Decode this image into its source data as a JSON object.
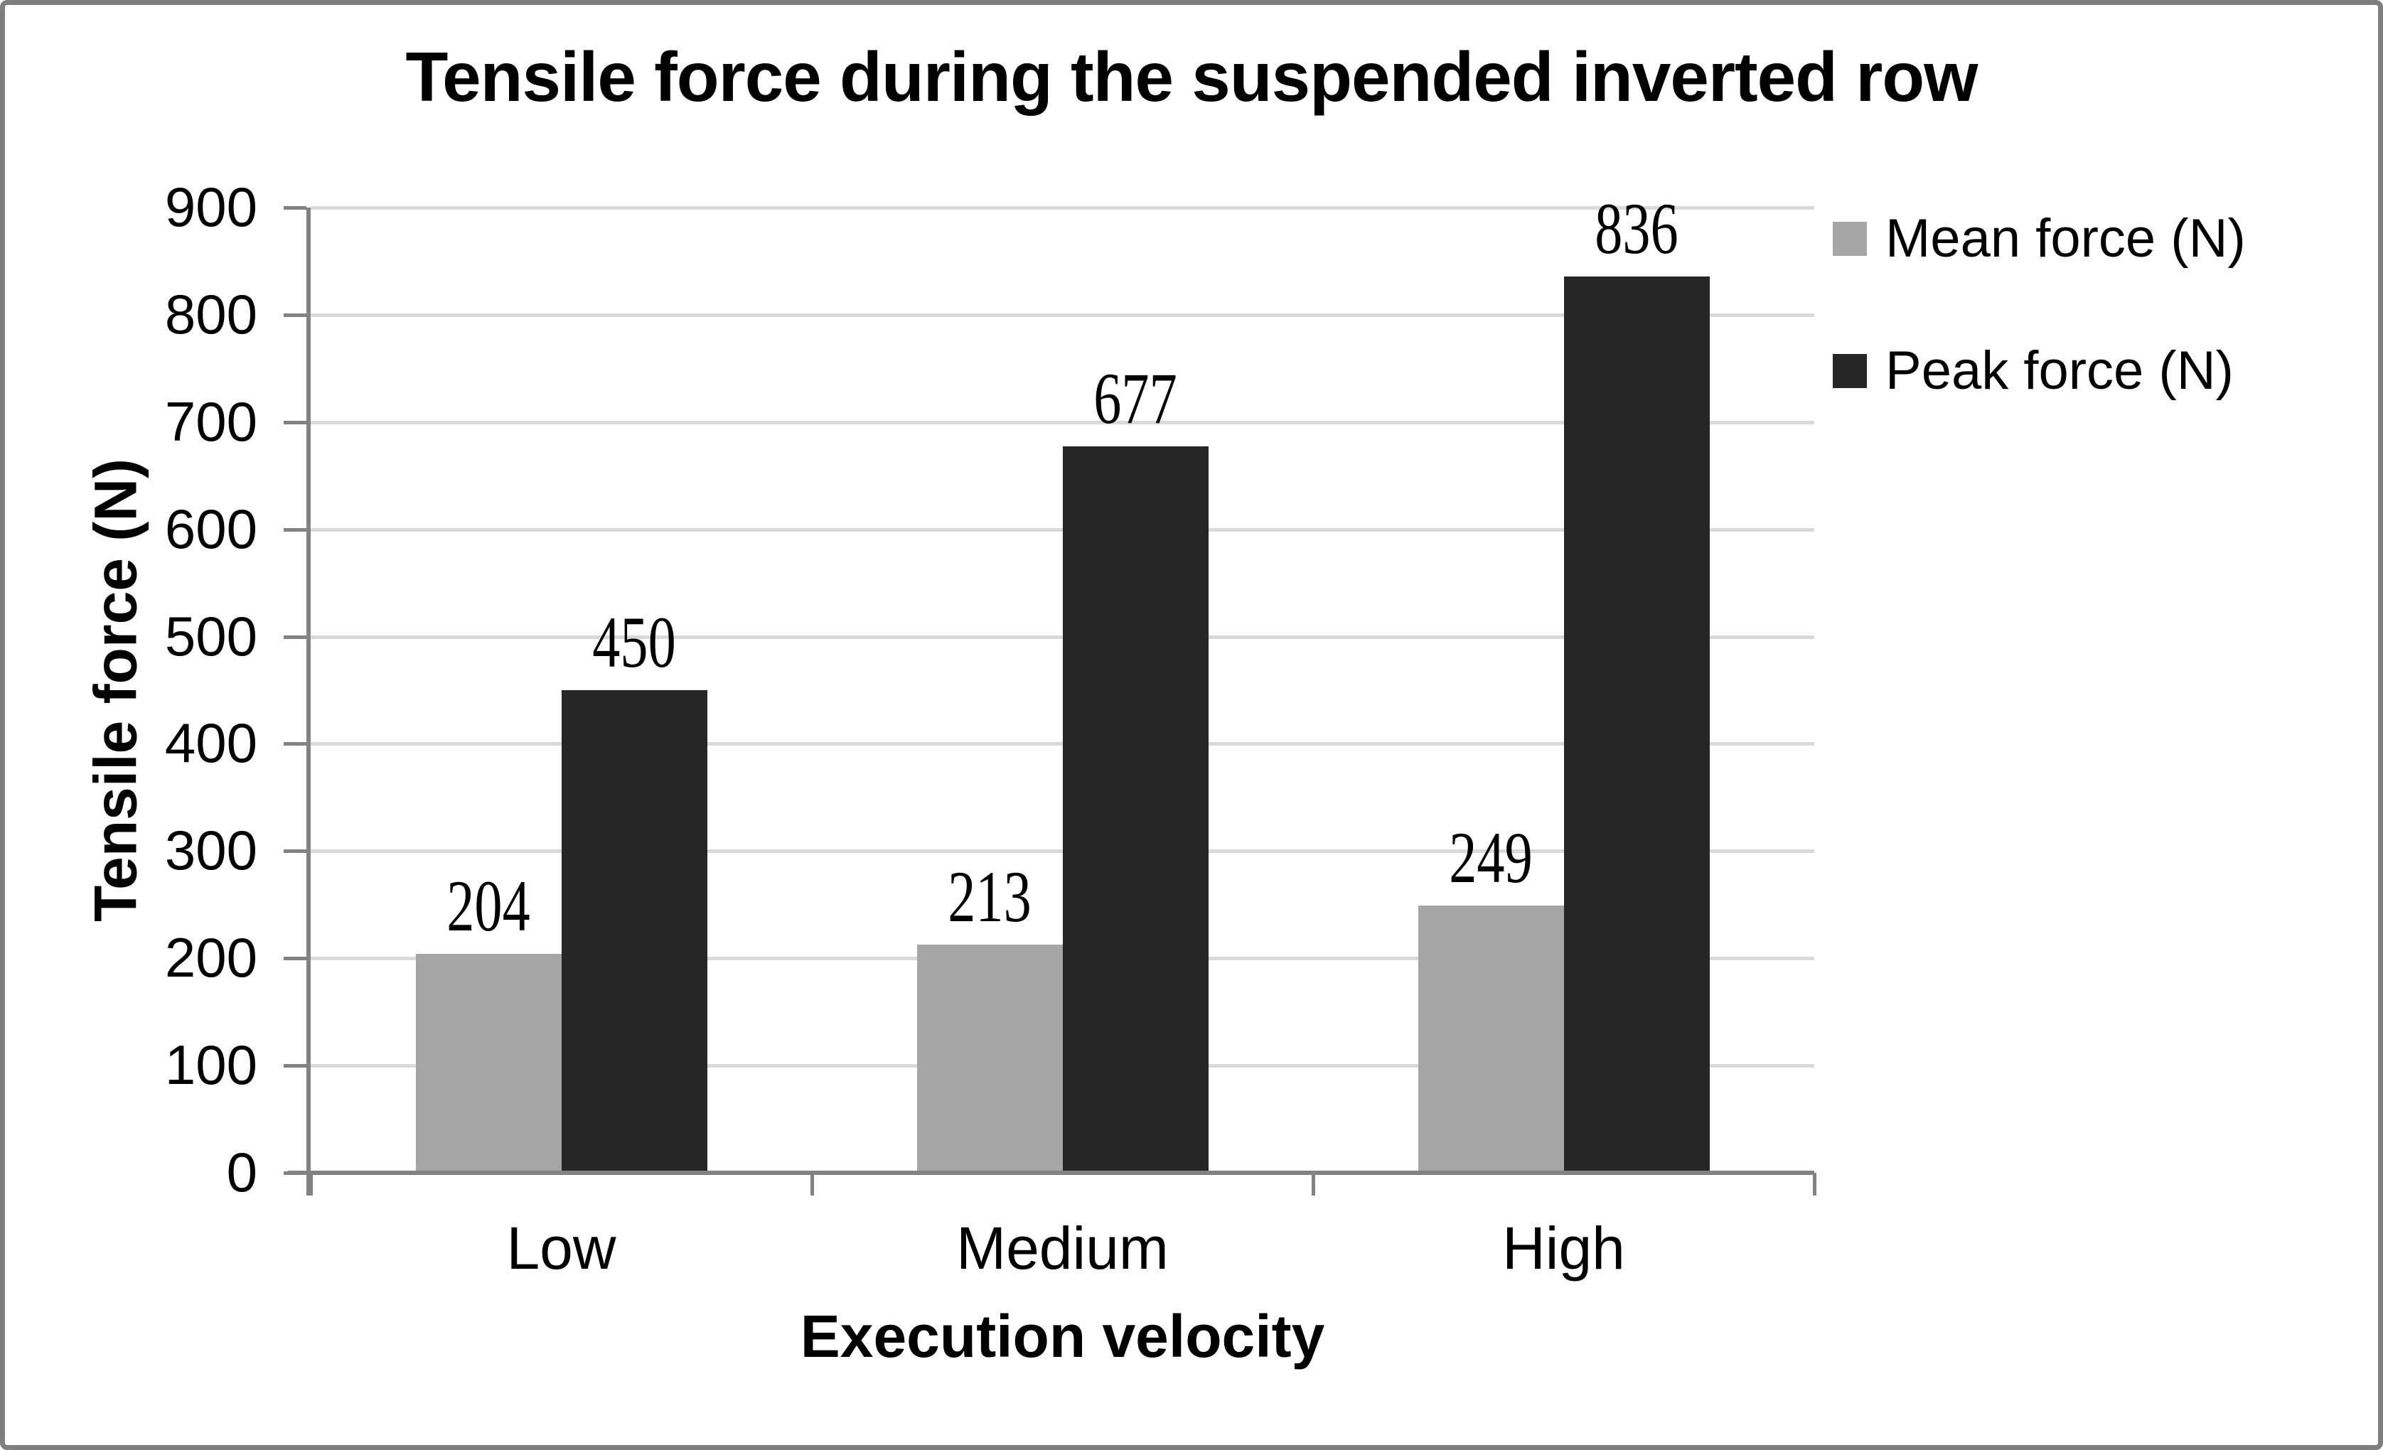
{
  "window": {
    "background": "#ffffff",
    "border_color": "#808080"
  },
  "chart_data": {
    "type": "bar",
    "title": "Tensile force during the suspended inverted row",
    "xlabel": "Execution velocity",
    "ylabel": "Tensile force (N)",
    "categories": [
      "Low",
      "Medium",
      "High"
    ],
    "series": [
      {
        "name": "Mean force (N)",
        "color": "#a6a6a6",
        "values": [
          204,
          213,
          249
        ]
      },
      {
        "name": "Peak force (N)",
        "color": "#262626",
        "values": [
          450,
          677,
          836
        ]
      }
    ],
    "data_labels_shown": true,
    "ylim": [
      0,
      900
    ],
    "ytick_step": 100,
    "yticks": [
      0,
      100,
      200,
      300,
      400,
      500,
      600,
      700,
      800,
      900
    ],
    "grid": true,
    "legend_position": "right",
    "gridline_color": "#d9d9d9",
    "axis_color": "#828282",
    "text_color": "#000000"
  }
}
